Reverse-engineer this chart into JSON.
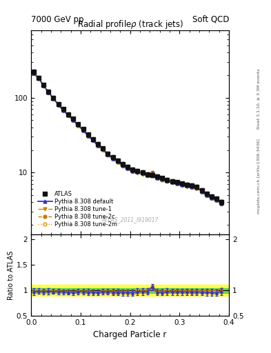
{
  "title_main": "Radial profileρ (track jets)",
  "header_left": "7000 GeV pp",
  "header_right": "Soft QCD",
  "xlabel": "Charged Particle r",
  "ylabel_ratio": "Ratio to ATLAS",
  "right_label_top": "Rivet 3.1.10, ≥ 3.3M events",
  "right_label_bottom": "mcplots.cern.ch [arXiv:1306.3436]",
  "watermark": "ATLAS_2011_I919017",
  "r_values": [
    0.005,
    0.015,
    0.025,
    0.035,
    0.045,
    0.055,
    0.065,
    0.075,
    0.085,
    0.095,
    0.105,
    0.115,
    0.125,
    0.135,
    0.145,
    0.155,
    0.165,
    0.175,
    0.185,
    0.195,
    0.205,
    0.215,
    0.225,
    0.235,
    0.245,
    0.255,
    0.265,
    0.275,
    0.285,
    0.295,
    0.305,
    0.315,
    0.325,
    0.335,
    0.345,
    0.355,
    0.365,
    0.375,
    0.385
  ],
  "data_atlas": [
    220,
    185,
    148,
    120,
    100,
    82,
    70,
    60,
    52,
    44,
    38,
    32,
    28,
    24,
    21,
    18,
    16,
    14.5,
    13,
    12,
    11,
    10.5,
    10,
    9.5,
    9.2,
    8.8,
    8.4,
    8.0,
    7.7,
    7.4,
    7.1,
    6.9,
    6.7,
    6.5,
    5.8,
    5.2,
    4.8,
    4.5,
    4.0
  ],
  "data_pythia_default": [
    215,
    182,
    145,
    118,
    98,
    80,
    68,
    58,
    50,
    43,
    37,
    31,
    27,
    23,
    20.5,
    17.5,
    15.5,
    14.0,
    12.5,
    11.5,
    10.5,
    10.2,
    9.8,
    9.3,
    9.8,
    8.5,
    8.1,
    7.8,
    7.5,
    7.2,
    6.9,
    6.7,
    6.5,
    6.3,
    5.6,
    5.0,
    4.6,
    4.3,
    3.9
  ],
  "data_tune1": [
    210,
    180,
    143,
    116,
    97,
    79,
    67,
    57,
    49,
    42,
    36,
    30.5,
    26.5,
    22.5,
    20,
    17,
    15,
    13.5,
    12.2,
    11.2,
    10.2,
    9.9,
    9.5,
    9.0,
    9.5,
    8.3,
    7.9,
    7.6,
    7.3,
    7.0,
    6.7,
    6.5,
    6.3,
    6.1,
    5.5,
    4.9,
    4.5,
    4.2,
    3.8
  ],
  "data_tune2c": [
    218,
    184,
    147,
    119,
    99,
    81,
    69,
    59,
    51,
    43.5,
    37.5,
    31.5,
    27.5,
    23.5,
    20.8,
    17.8,
    15.8,
    14.2,
    12.8,
    11.8,
    10.8,
    10.4,
    10.0,
    9.5,
    10.0,
    8.7,
    8.3,
    8.0,
    7.7,
    7.4,
    7.1,
    6.9,
    6.7,
    6.5,
    5.8,
    5.2,
    4.8,
    4.5,
    4.1
  ],
  "data_tune2m": [
    212,
    181,
    144,
    117,
    98,
    80,
    68,
    58,
    50,
    42.5,
    36.5,
    31,
    27,
    23,
    20.2,
    17.2,
    15.2,
    13.8,
    12.4,
    11.4,
    10.4,
    10.1,
    9.7,
    9.2,
    9.7,
    8.4,
    8.0,
    7.7,
    7.4,
    7.1,
    6.8,
    6.6,
    6.4,
    6.2,
    5.6,
    5.0,
    4.6,
    4.3,
    3.9
  ],
  "data_atlas_err_abs": [
    15,
    10,
    8,
    7,
    5,
    4,
    3.5,
    3,
    2.5,
    2.2,
    2,
    1.8,
    1.5,
    1.3,
    1.2,
    1.0,
    0.9,
    0.85,
    0.8,
    0.75,
    0.7,
    0.7,
    0.65,
    0.6,
    0.6,
    0.55,
    0.5,
    0.5,
    0.48,
    0.45,
    0.43,
    0.42,
    0.4,
    0.39,
    0.37,
    0.34,
    0.32,
    0.3,
    0.28
  ],
  "color_atlas": "#111111",
  "color_default": "#3333cc",
  "color_tune1": "#cc8800",
  "color_tune2c": "#cc7700",
  "color_tune2m": "#dd9900",
  "green_band_inner": 0.05,
  "yellow_band_outer": 0.11,
  "ylim_main_low": 1.5,
  "ylim_main_high": 800.0,
  "ylim_ratio_low": 0.5,
  "ylim_ratio_high": 2.1,
  "xlim_low": 0.0,
  "xlim_high": 0.4
}
